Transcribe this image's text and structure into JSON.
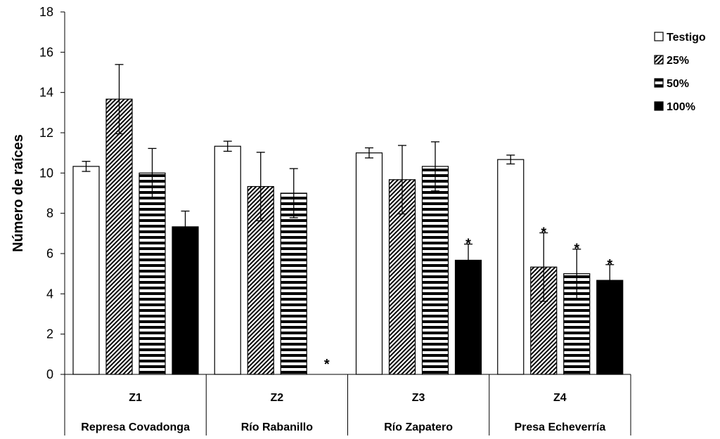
{
  "chart_data": {
    "type": "bar",
    "title": "",
    "xlabel": "",
    "ylabel": "Número de raíces",
    "ylim": [
      0,
      18
    ],
    "yticks": [
      0,
      2,
      4,
      6,
      8,
      10,
      12,
      14,
      16,
      18
    ],
    "grid": false,
    "legend_position": "right",
    "categories": [
      {
        "code": "Z1",
        "site": "Represa Covadonga"
      },
      {
        "code": "Z2",
        "site": "Río Rabanillo"
      },
      {
        "code": "Z3",
        "site": "Río Zapatero"
      },
      {
        "code": "Z4",
        "site": "Presa Echeverría"
      }
    ],
    "series": [
      {
        "name": "Testigo",
        "pattern": "white",
        "values": [
          10.33,
          11.33,
          11.0,
          10.67
        ],
        "errors": [
          0.25,
          0.25,
          0.25,
          0.22
        ],
        "significant": [
          false,
          false,
          false,
          false
        ]
      },
      {
        "name": "25%",
        "pattern": "diagonal",
        "values": [
          13.67,
          9.33,
          9.67,
          5.33
        ],
        "errors": [
          1.72,
          1.7,
          1.7,
          1.7
        ],
        "significant": [
          false,
          false,
          false,
          true
        ]
      },
      {
        "name": "50%",
        "pattern": "horizontal",
        "values": [
          10.0,
          9.0,
          10.33,
          5.0
        ],
        "errors": [
          1.22,
          1.22,
          1.22,
          1.22
        ],
        "significant": [
          false,
          false,
          false,
          true
        ]
      },
      {
        "name": "100%",
        "pattern": "solid",
        "values": [
          7.33,
          0,
          5.67,
          4.67
        ],
        "errors": [
          0.78,
          0,
          0.8,
          0.78
        ],
        "significant": [
          false,
          true,
          true,
          true
        ]
      }
    ],
    "annotation_symbol": "*"
  }
}
